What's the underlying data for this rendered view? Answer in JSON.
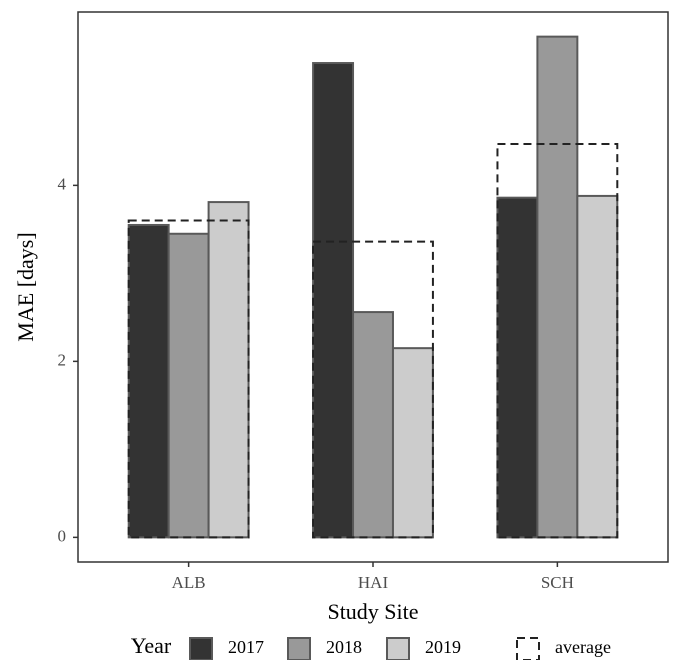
{
  "chart_data": {
    "type": "bar",
    "x_label": "Study Site",
    "y_label": "MAE [days]",
    "categories": [
      "ALB",
      "HAI",
      "SCH"
    ],
    "legend_title": "Year",
    "series": [
      {
        "name": "2017",
        "color": "#333333",
        "values": [
          3.55,
          5.39,
          3.86
        ]
      },
      {
        "name": "2018",
        "color": "#999999",
        "values": [
          3.45,
          2.56,
          5.69
        ]
      },
      {
        "name": "2019",
        "color": "#cccccc",
        "values": [
          3.81,
          2.15,
          3.88
        ]
      }
    ],
    "average": {
      "name": "average",
      "values": [
        3.6,
        3.36,
        4.47
      ]
    },
    "ylim": [
      -0.28,
      5.97
    ],
    "yticks": [
      0,
      2,
      4
    ],
    "grid": false
  }
}
